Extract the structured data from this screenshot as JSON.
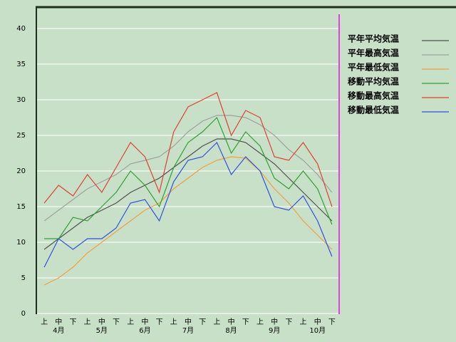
{
  "chart_data": {
    "type": "line",
    "categories": [
      "上",
      "中",
      "下",
      "上",
      "中",
      "下",
      "上",
      "中",
      "下",
      "上",
      "中",
      "下",
      "上",
      "中",
      "下",
      "上",
      "中",
      "下",
      "上",
      "中",
      "下"
    ],
    "months": [
      "4月",
      "5月",
      "6月",
      "7月",
      "8月",
      "9月",
      "10月"
    ],
    "ylim": [
      0,
      43
    ],
    "yticks": [
      0,
      5,
      10,
      15,
      20,
      25,
      30,
      35,
      40
    ],
    "grid": true,
    "legend": "right",
    "series": [
      {
        "name": "平年平均気温",
        "color": "#505050",
        "values": [
          9,
          10.5,
          12,
          13.5,
          14.5,
          15.5,
          17,
          18,
          19,
          20.5,
          22,
          23.5,
          24.5,
          24.5,
          24,
          22.5,
          21,
          19,
          17,
          15,
          13
        ]
      },
      {
        "name": "平年最高気温",
        "color": "#a0a0a0",
        "values": [
          13,
          14.5,
          16,
          17.5,
          18.5,
          19.5,
          21,
          21.5,
          22,
          23.5,
          25.5,
          27,
          27.8,
          27.8,
          27.5,
          26.5,
          25,
          23,
          21.5,
          19.5,
          17
        ]
      },
      {
        "name": "平年最低気温",
        "color": "#f0a040",
        "values": [
          4,
          5,
          6.5,
          8.5,
          10,
          11.5,
          13,
          14.5,
          15.5,
          17.5,
          19,
          20.5,
          21.5,
          22,
          21.8,
          20,
          17.5,
          15.5,
          13,
          11,
          9
        ]
      },
      {
        "name": "移動平均気温",
        "color": "#30a030",
        "values": [
          10.5,
          10.5,
          13.5,
          13,
          15,
          17,
          20,
          18,
          15,
          20.5,
          24,
          25.5,
          27.5,
          22.5,
          25.5,
          23.5,
          19,
          17.5,
          20,
          17.5,
          12.5
        ]
      },
      {
        "name": "移動最高気温",
        "color": "#e04030",
        "values": [
          15.5,
          18,
          16.5,
          19.5,
          17,
          20.5,
          24,
          22,
          17,
          25.5,
          29,
          30,
          31,
          25,
          28.5,
          27.5,
          22,
          21.5,
          24,
          21,
          15
        ]
      },
      {
        "name": "移動最低気温",
        "color": "#3050e0",
        "values": [
          6.5,
          10.5,
          9,
          10.5,
          10.5,
          12,
          15.5,
          16,
          13,
          18.5,
          21.5,
          22,
          24,
          19.5,
          22,
          20,
          15,
          14.5,
          16.5,
          13,
          8
        ]
      }
    ]
  }
}
